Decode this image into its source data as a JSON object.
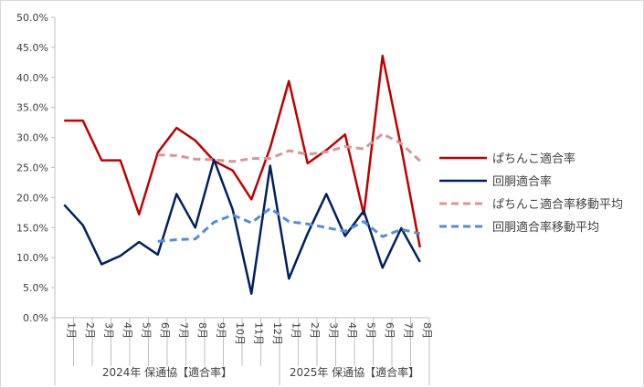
{
  "chart_data": {
    "type": "line",
    "title": "",
    "xlabel": "",
    "ylabel": "",
    "ylim": [
      0,
      0.5
    ],
    "y_ticks": [
      "0.0%",
      "5.0%",
      "10.0%",
      "15.0%",
      "20.0%",
      "25.0%",
      "30.0%",
      "35.0%",
      "40.0%",
      "45.0%",
      "50.0%"
    ],
    "y_tick_values": [
      0,
      0.05,
      0.1,
      0.15,
      0.2,
      0.25,
      0.3,
      0.35,
      0.4,
      0.45,
      0.5
    ],
    "grid": false,
    "legend_position": "right",
    "categories": [
      "1月",
      "2月",
      "3月",
      "4月",
      "5月",
      "6月",
      "7月",
      "8月",
      "9月",
      "10月",
      "11月",
      "12月",
      "1月",
      "2月",
      "3月",
      "4月",
      "5月",
      "6月",
      "7月",
      "8月"
    ],
    "groups": [
      {
        "label": "2024年 保通協【適合率】",
        "count": 12
      },
      {
        "label": "2025年 保通協【適合率】",
        "count": 8
      }
    ],
    "series": [
      {
        "name": "ぱちんこ適合率",
        "color": "#c00000",
        "dash": "solid",
        "values": [
          0.328,
          0.328,
          0.262,
          0.262,
          0.172,
          0.275,
          0.316,
          0.295,
          0.261,
          0.245,
          0.197,
          0.283,
          0.394,
          0.257,
          0.279,
          0.305,
          0.172,
          0.436,
          0.283,
          0.117
        ]
      },
      {
        "name": "回胴適合率",
        "color": "#002060",
        "dash": "solid",
        "values": [
          0.188,
          0.154,
          0.089,
          0.103,
          0.126,
          0.105,
          0.206,
          0.15,
          0.263,
          0.18,
          0.04,
          0.253,
          0.065,
          0.14,
          0.206,
          0.136,
          0.178,
          0.083,
          0.149,
          0.093
        ]
      },
      {
        "name": "ぱちんこ適合率移動平均",
        "color": "#d99694",
        "dash": "dashed",
        "values": [
          null,
          null,
          null,
          null,
          null,
          0.271,
          0.27,
          0.264,
          0.263,
          0.26,
          0.265,
          0.265,
          0.278,
          0.272,
          0.276,
          0.285,
          0.281,
          0.306,
          0.29,
          0.261
        ]
      },
      {
        "name": "回胴適合率移動平均",
        "color": "#558ed5",
        "dash": "dashed",
        "values": [
          null,
          null,
          null,
          null,
          null,
          0.127,
          0.13,
          0.131,
          0.159,
          0.171,
          0.158,
          0.182,
          0.16,
          0.156,
          0.15,
          0.144,
          0.16,
          0.135,
          0.147,
          0.14
        ]
      }
    ]
  }
}
